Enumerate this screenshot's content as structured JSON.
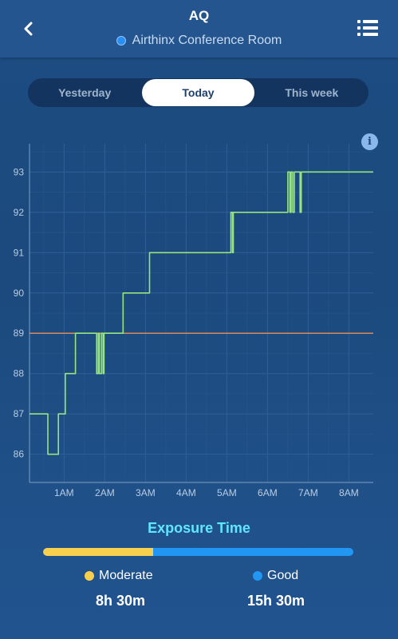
{
  "header": {
    "title": "AQ",
    "device_name": "Airthinx Conference Room",
    "device_status_color": "#2a8ff2"
  },
  "tabs": [
    {
      "label": "Yesterday",
      "active": false
    },
    {
      "label": "Today",
      "active": true
    },
    {
      "label": "This week",
      "active": false
    }
  ],
  "info_label": "i",
  "chart_data": {
    "type": "line",
    "x_unit": "hours since midnight",
    "xlim": [
      0.15,
      8.6
    ],
    "ylim": [
      85.3,
      93.7
    ],
    "x_ticks": [
      {
        "value": 1,
        "label": "1AM"
      },
      {
        "value": 2,
        "label": "2AM"
      },
      {
        "value": 3,
        "label": "3AM"
      },
      {
        "value": 4,
        "label": "4AM"
      },
      {
        "value": 5,
        "label": "5AM"
      },
      {
        "value": 6,
        "label": "6AM"
      },
      {
        "value": 7,
        "label": "7AM"
      },
      {
        "value": 8,
        "label": "8AM"
      }
    ],
    "y_ticks": [
      86,
      87,
      88,
      89,
      90,
      91,
      92,
      93
    ],
    "grid": true,
    "series": [
      {
        "color": "#97e57c",
        "points": [
          [
            0.15,
            87
          ],
          [
            0.6,
            87
          ],
          [
            0.6,
            86
          ],
          [
            0.86,
            86
          ],
          [
            0.86,
            87
          ],
          [
            1.03,
            87
          ],
          [
            1.03,
            88
          ],
          [
            1.28,
            88
          ],
          [
            1.28,
            89
          ],
          [
            1.8,
            89
          ],
          [
            1.8,
            88
          ],
          [
            1.84,
            88
          ],
          [
            1.84,
            89
          ],
          [
            1.87,
            89
          ],
          [
            1.87,
            88
          ],
          [
            1.92,
            88
          ],
          [
            1.92,
            89
          ],
          [
            1.96,
            89
          ],
          [
            1.96,
            88
          ],
          [
            1.98,
            88
          ],
          [
            1.98,
            89
          ],
          [
            2.45,
            89
          ],
          [
            2.45,
            90
          ],
          [
            3.1,
            90
          ],
          [
            3.1,
            91
          ],
          [
            5.1,
            91
          ],
          [
            5.1,
            92
          ],
          [
            5.14,
            92
          ],
          [
            5.14,
            91
          ],
          [
            5.16,
            91
          ],
          [
            5.16,
            92
          ],
          [
            6.5,
            92
          ],
          [
            6.5,
            93
          ],
          [
            6.55,
            93
          ],
          [
            6.55,
            92
          ],
          [
            6.58,
            92
          ],
          [
            6.58,
            93
          ],
          [
            6.62,
            93
          ],
          [
            6.62,
            92
          ],
          [
            6.66,
            92
          ],
          [
            6.66,
            93
          ],
          [
            6.8,
            93
          ],
          [
            6.8,
            92
          ],
          [
            6.83,
            92
          ],
          [
            6.83,
            93
          ],
          [
            8.6,
            93
          ]
        ]
      }
    ],
    "threshold": {
      "value": 89,
      "color": "#d98a5b"
    }
  },
  "exposure": {
    "title": "Exposure Time",
    "moderate_fraction": 0.354,
    "moderate": {
      "label": "Moderate",
      "value": "8h 30m",
      "color": "#f9cf4e"
    },
    "good": {
      "label": "Good",
      "value": "15h 30m",
      "color": "#2196f3"
    }
  }
}
